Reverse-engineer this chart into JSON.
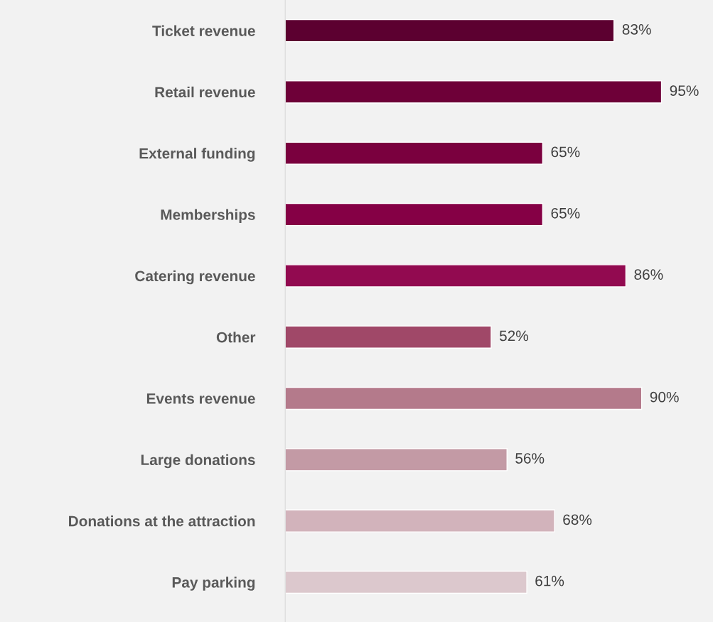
{
  "chart_data": {
    "type": "bar",
    "orientation": "horizontal",
    "categories": [
      "Ticket revenue",
      "Retail revenue",
      "External funding",
      "Memberships",
      "Catering revenue",
      "Other",
      "Events revenue",
      "Large donations",
      "Donations at the attraction",
      "Pay parking"
    ],
    "values": [
      83,
      95,
      65,
      65,
      86,
      52,
      90,
      56,
      68,
      61
    ],
    "colors": [
      "#5c0030",
      "#6e0038",
      "#7a003e",
      "#850045",
      "#920a50",
      "#a04868",
      "#b47a8b",
      "#c39aa5",
      "#d2b3bb",
      "#dcc8cd"
    ],
    "value_labels": [
      "83%",
      "95%",
      "65%",
      "65%",
      "86%",
      "52%",
      "90%",
      "56%",
      "68%",
      "61%"
    ],
    "xlim": [
      0,
      108
    ],
    "tick_labels": "y",
    "grid": false,
    "legend": false
  }
}
